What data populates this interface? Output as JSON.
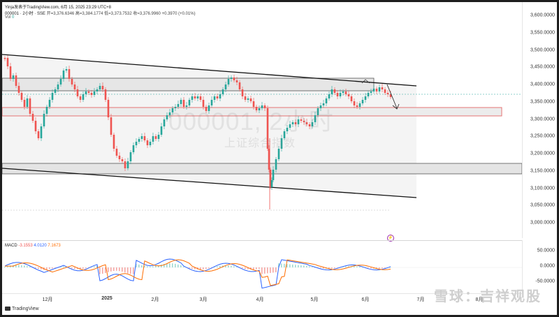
{
  "header": {
    "line1": "Yinja发表于TradingView.com, 6月 15, 2025 23:29 UTC+8",
    "symbol": "000001 · 2小时 · SSE",
    "open": "开=3,376.6346",
    "high": "高=3,384.1774",
    "low": "低=3,373.7532",
    "close": "收=3,376.9960",
    "change": "+0.3970 (+0.01%)",
    "vol_label": "Vol",
    "vol_value": "0"
  },
  "watermark": {
    "code": "000001, 2小时",
    "name": "上证综合指数"
  },
  "price_axis": [
    "3,600.0000",
    "3,550.0000",
    "3,500.0000",
    "3,450.0000",
    "3,400.0000",
    "3,350.0000",
    "3,300.0000",
    "3,250.0000",
    "3,200.0000",
    "3,150.0000",
    "3,100.0000",
    "3,050.0000",
    "3,000.0000"
  ],
  "macd": {
    "label": "MACD",
    "hist": "-3.1553",
    "macd_line": "4.0120",
    "signal": "7.1673",
    "axis": [
      "50.0000",
      "0.0000",
      "-50.0000"
    ]
  },
  "time_axis": [
    {
      "label": "12月",
      "bold": false
    },
    {
      "label": "2025",
      "bold": true
    },
    {
      "label": "2月",
      "bold": false
    },
    {
      "label": "3月",
      "bold": false
    },
    {
      "label": "4月",
      "bold": false
    },
    {
      "label": "5月",
      "bold": false
    },
    {
      "label": "6月",
      "bold": false
    },
    {
      "label": "7月",
      "bold": false
    },
    {
      "label": "8月",
      "bold": false
    }
  ],
  "footer": {
    "logo": "TradingView",
    "brand": "雪球：吉祥观股"
  },
  "colors": {
    "up": "#26a69a",
    "down": "#ef5350",
    "macd_line": "#2962ff",
    "signal_line": "#ff6d00",
    "zone_red": "#e57373"
  },
  "icons": {
    "alert": "target-icon"
  }
}
